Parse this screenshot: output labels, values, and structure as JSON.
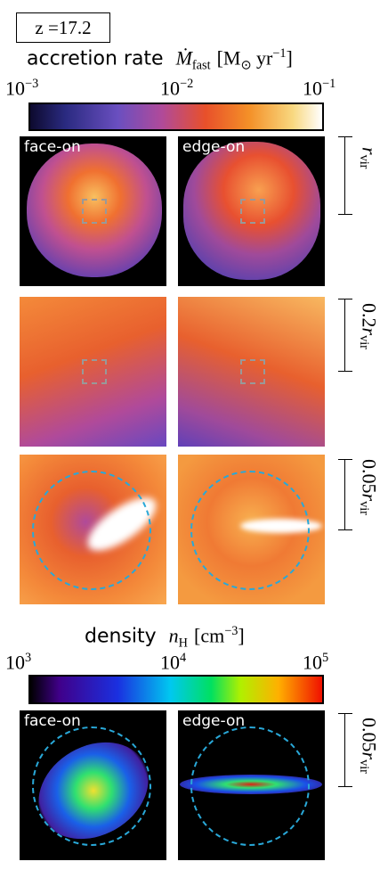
{
  "redshift": "z =17.2",
  "accretion": {
    "label": "accretion rate",
    "symbol": "Ṁ",
    "sub": "fast",
    "unit": "[M",
    "unit_sub": "⊙",
    "unit2": " yr",
    "unit_exp": "−1",
    "close": "]",
    "ticks": [
      {
        "base": "10",
        "exp": "−3"
      },
      {
        "base": "10",
        "exp": "−2"
      },
      {
        "base": "10",
        "exp": "−1"
      }
    ]
  },
  "density": {
    "label": "density",
    "symbol": "n",
    "sub": "H",
    "unit": "[cm",
    "unit_exp": "−3",
    "close": "]",
    "ticks": [
      {
        "base": "10",
        "exp": "3"
      },
      {
        "base": "10",
        "exp": "4"
      },
      {
        "base": "10",
        "exp": "5"
      }
    ]
  },
  "panels": {
    "face": "face-on",
    "edge": "edge-on"
  },
  "scales": [
    {
      "coef": "",
      "r": "r",
      "sub": "vir"
    },
    {
      "coef": "0.2",
      "r": "r",
      "sub": "vir"
    },
    {
      "coef": "0.05",
      "r": "r",
      "sub": "vir"
    },
    {
      "coef": "0.05",
      "r": "r",
      "sub": "vir"
    }
  ]
}
